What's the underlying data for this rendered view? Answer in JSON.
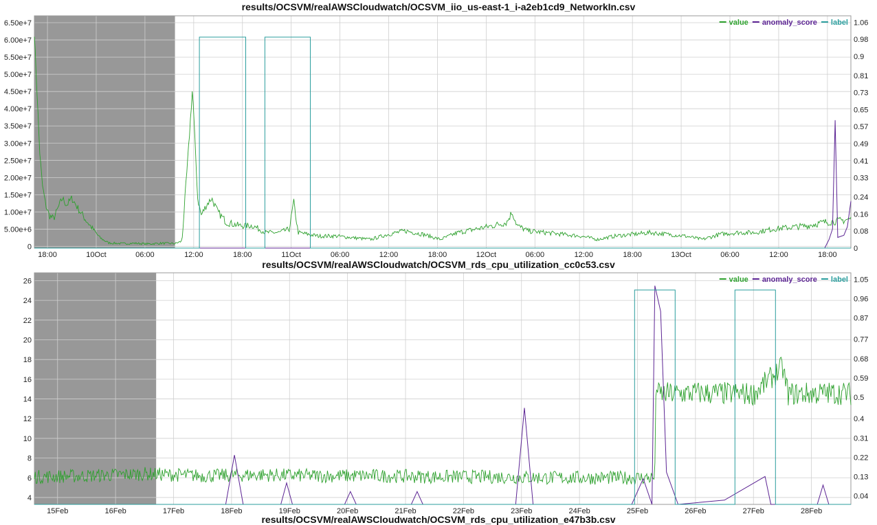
{
  "colors": {
    "value": "#2ca02c",
    "anomaly_score": "#5b2393",
    "label": "#2a9d9d",
    "shade": "#989898",
    "grid": "#cfcfcf"
  },
  "chart_data": [
    {
      "type": "line",
      "title": "results/OCSVM/realAWSCloudwatch/OCSVM_iio_us-east-1_i-a2eb1cd9_NetworkIn.csv",
      "legend": [
        "value",
        "anomaly_score",
        "label"
      ],
      "legend_position": "top-right",
      "x_ticks": [
        "18:00",
        "10Oct",
        "06:00",
        "12:00",
        "18:00",
        "11Oct",
        "06:00",
        "12:00",
        "18:00",
        "12Oct",
        "06:00",
        "12:00",
        "18:00",
        "13Oct",
        "06:00",
        "12:00",
        "18:00"
      ],
      "x_range_hours": [
        -8.5,
        85
      ],
      "y_left_ticks": [
        "0",
        "5.00e+6",
        "1.00e+7",
        "1.50e+7",
        "2.00e+7",
        "2.50e+7",
        "3.00e+7",
        "3.50e+7",
        "4.00e+7",
        "4.50e+7",
        "5.00e+7",
        "5.50e+7",
        "6.00e+7",
        "6.50e+7"
      ],
      "y_left_range": [
        -500000,
        67000000
      ],
      "y_right_ticks": [
        "0",
        "0.08",
        "0.16",
        "0.24",
        "0.33",
        "0.41",
        "0.49",
        "0.57",
        "0.65",
        "0.73",
        "0.81",
        "0.9",
        "0.98",
        "1.06"
      ],
      "y_right_range": [
        0,
        1.09
      ],
      "grid": true,
      "shaded_region_hours": [
        -8.5,
        7.6
      ],
      "series": [
        {
          "name": "value",
          "points": [
            [
              -8.5,
              62000000
            ],
            [
              -8.2,
              45000000
            ],
            [
              -7.9,
              28000000
            ],
            [
              -7.6,
              18000000
            ],
            [
              -7.2,
              12000000
            ],
            [
              -6.8,
              9000000
            ],
            [
              -6.3,
              8000000
            ],
            [
              -5.8,
              11000000
            ],
            [
              -5.3,
              14000000
            ],
            [
              -4.8,
              12000000
            ],
            [
              -4.2,
              14000000
            ],
            [
              -3.5,
              11000000
            ],
            [
              -2.7,
              8000000
            ],
            [
              -1.8,
              5000000
            ],
            [
              -1.0,
              2500000
            ],
            [
              0,
              1000000
            ],
            [
              1.5,
              800000
            ],
            [
              3,
              900000
            ],
            [
              4.5,
              700000
            ],
            [
              6,
              900000
            ],
            [
              7.6,
              800000
            ],
            [
              8.4,
              1500000
            ],
            [
              9.2,
              30000000
            ],
            [
              9.6,
              46000000
            ],
            [
              9.9,
              30000000
            ],
            [
              10.2,
              14000000
            ],
            [
              10.6,
              9000000
            ],
            [
              11.2,
              12000000
            ],
            [
              11.8,
              14000000
            ],
            [
              12.5,
              10000000
            ],
            [
              13.5,
              7000000
            ],
            [
              15,
              6000000
            ],
            [
              16.5,
              6000000
            ],
            [
              18,
              4000000
            ],
            [
              19.5,
              4000000
            ],
            [
              20.7,
              5000000
            ],
            [
              21.2,
              13000000
            ],
            [
              21.7,
              4000000
            ],
            [
              24,
              3000000
            ],
            [
              26,
              3000000
            ],
            [
              28,
              2500000
            ],
            [
              30,
              2000000
            ],
            [
              32,
              3500000
            ],
            [
              34,
              4500000
            ],
            [
              36,
              3500000
            ],
            [
              38,
              2000000
            ],
            [
              40,
              4000000
            ],
            [
              42,
              5000000
            ],
            [
              44,
              6000000
            ],
            [
              45.6,
              7000000
            ],
            [
              46.2,
              10000000
            ],
            [
              46.8,
              6000000
            ],
            [
              48,
              4500000
            ],
            [
              50,
              4000000
            ],
            [
              52,
              3500000
            ],
            [
              54,
              3000000
            ],
            [
              56,
              2000000
            ],
            [
              58,
              3000000
            ],
            [
              60,
              3500000
            ],
            [
              62,
              4000000
            ],
            [
              64,
              3500000
            ],
            [
              66,
              3000000
            ],
            [
              68,
              2000000
            ],
            [
              70,
              3500000
            ],
            [
              72,
              4000000
            ],
            [
              74,
              4000000
            ],
            [
              76,
              5000000
            ],
            [
              78,
              5500000
            ],
            [
              80,
              6000000
            ],
            [
              82,
              7000000
            ],
            [
              84,
              7500000
            ],
            [
              85,
              8000000
            ]
          ]
        },
        {
          "name": "anomaly_score",
          "points": [
            [
              -8.5,
              0
            ],
            [
              82.0,
              0
            ],
            [
              82.5,
              0.04
            ],
            [
              82.9,
              0.09
            ],
            [
              83.2,
              0.6
            ],
            [
              83.5,
              0.05
            ],
            [
              84.2,
              0.06
            ],
            [
              84.6,
              0.1
            ],
            [
              85,
              0.22
            ]
          ]
        },
        {
          "name": "label",
          "points": [
            [
              -8.5,
              0
            ],
            [
              10.4,
              0
            ],
            [
              10.4,
              0.99
            ],
            [
              15.7,
              0.99
            ],
            [
              15.7,
              0
            ],
            [
              17.9,
              0
            ],
            [
              17.9,
              0.99
            ],
            [
              23.1,
              0.99
            ],
            [
              23.1,
              0
            ],
            [
              85,
              0
            ]
          ]
        }
      ]
    },
    {
      "type": "line",
      "title": "results/OCSVM/realAWSCloudwatch/OCSVM_rds_cpu_utilization_cc0c53.csv",
      "legend": [
        "value",
        "anomaly_score",
        "label"
      ],
      "legend_position": "top-right",
      "x_ticks": [
        "15Feb",
        "16Feb",
        "17Feb",
        "18Feb",
        "19Feb",
        "20Feb",
        "21Feb",
        "22Feb",
        "23Feb",
        "24Feb",
        "25Feb",
        "26Feb",
        "27Feb",
        "28Feb"
      ],
      "x_range_days": [
        14.6,
        28.68
      ],
      "y_left_ticks": [
        "4",
        "6",
        "8",
        "10",
        "12",
        "14",
        "16",
        "18",
        "20",
        "22",
        "24",
        "26"
      ],
      "y_left_range": [
        3.3,
        26.8
      ],
      "y_right_ticks": [
        "0.04",
        "0.13",
        "0.22",
        "0.31",
        "0.4",
        "0.5",
        "0.59",
        "0.68",
        "0.77",
        "0.87",
        "0.96",
        "1.05"
      ],
      "y_right_range": [
        0.0,
        1.08
      ],
      "grid": true,
      "shaded_region_days": [
        14.6,
        16.7
      ],
      "series": [
        {
          "name": "value",
          "points": [
            [
              14.6,
              6.1
            ],
            [
              15.5,
              6.2
            ],
            [
              16.5,
              6.4
            ],
            [
              17.5,
              6.2
            ],
            [
              18.5,
              6.3
            ],
            [
              19.5,
              6.2
            ],
            [
              20.5,
              6.2
            ],
            [
              21.5,
              6.1
            ],
            [
              22.5,
              6.1
            ],
            [
              23.5,
              6.0
            ],
            [
              24.5,
              6.0
            ],
            [
              25.3,
              6.0
            ],
            [
              25.32,
              16.5
            ],
            [
              25.35,
              14.5
            ],
            [
              26,
              14.6
            ],
            [
              27,
              14.5
            ],
            [
              27.5,
              17.2
            ],
            [
              27.6,
              14.5
            ],
            [
              28.5,
              14.6
            ],
            [
              28.68,
              14.5
            ]
          ]
        },
        {
          "name": "anomaly_score",
          "points": [
            [
              14.6,
              0.0
            ],
            [
              17.9,
              0.0
            ],
            [
              18.05,
              0.23
            ],
            [
              18.2,
              0.0
            ],
            [
              18.85,
              0.0
            ],
            [
              18.95,
              0.1
            ],
            [
              19.05,
              0.0
            ],
            [
              19.95,
              0.0
            ],
            [
              20.05,
              0.06
            ],
            [
              20.15,
              0.0
            ],
            [
              21.1,
              0.0
            ],
            [
              21.2,
              0.06
            ],
            [
              21.3,
              0.0
            ],
            [
              22.9,
              0.0
            ],
            [
              23.05,
              0.45
            ],
            [
              23.2,
              0.0
            ],
            [
              24.9,
              0.0
            ],
            [
              25.1,
              0.12
            ],
            [
              25.25,
              0.0
            ],
            [
              25.3,
              1.02
            ],
            [
              25.4,
              0.9
            ],
            [
              25.5,
              0.15
            ],
            [
              25.7,
              0.0
            ],
            [
              26.5,
              0.02
            ],
            [
              27.2,
              0.13
            ],
            [
              27.3,
              0.0
            ],
            [
              28.1,
              0.0
            ],
            [
              28.2,
              0.09
            ],
            [
              28.3,
              0.0
            ],
            [
              28.68,
              0.0
            ]
          ]
        },
        {
          "name": "label",
          "points": [
            [
              14.6,
              0.0
            ],
            [
              24.95,
              0.0
            ],
            [
              24.95,
              1.0
            ],
            [
              25.65,
              1.0
            ],
            [
              25.65,
              0.0
            ],
            [
              26.68,
              0.0
            ],
            [
              26.68,
              1.0
            ],
            [
              27.38,
              1.0
            ],
            [
              27.38,
              0.0
            ],
            [
              28.68,
              0.0
            ]
          ]
        }
      ]
    },
    {
      "type": "line",
      "title": "results/OCSVM/realAWSCloudwatch/OCSVM_rds_cpu_utilization_e47b3b.csv"
    }
  ]
}
